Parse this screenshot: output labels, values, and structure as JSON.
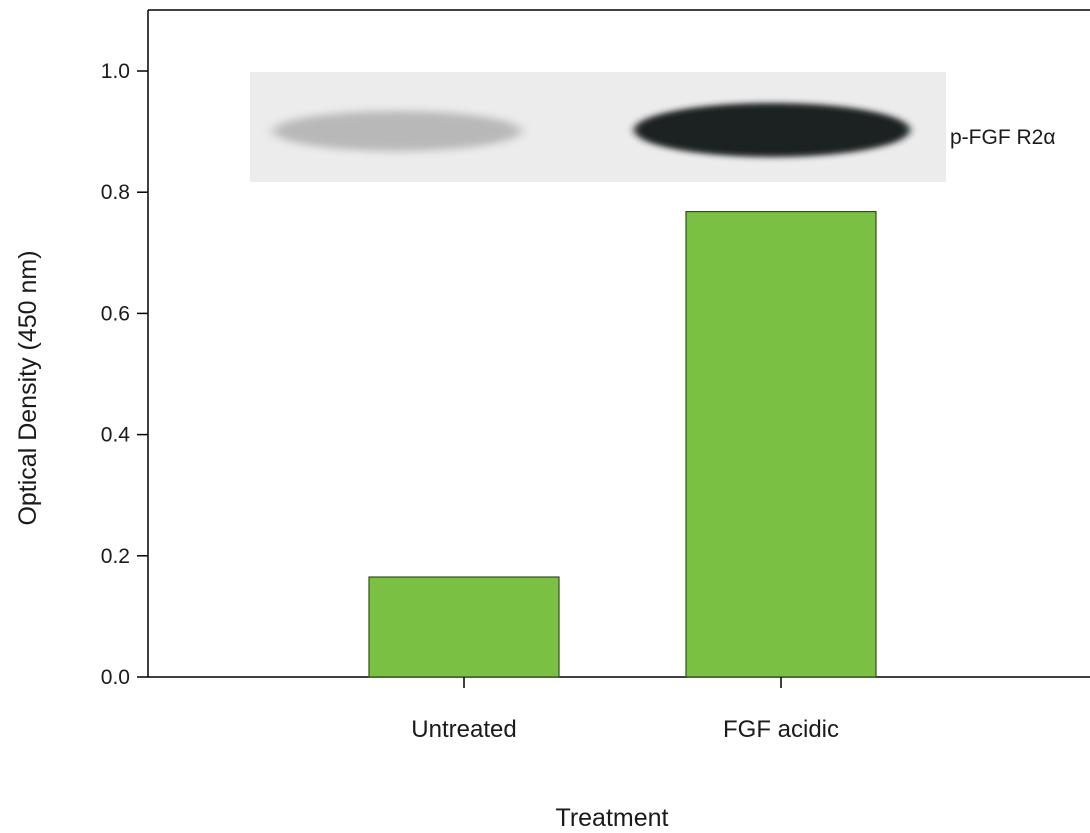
{
  "chart_data": {
    "type": "bar",
    "categories": [
      "Untreated",
      "FGF acidic"
    ],
    "values": [
      0.165,
      0.768
    ],
    "xlabel": "Treatment",
    "ylabel": "Optical Density (450 nm)",
    "ylim": [
      0,
      1.1
    ],
    "yticks": [
      "0.0",
      "0.2",
      "0.4",
      "0.6",
      "0.8",
      "1.0"
    ],
    "ytick_values": [
      0,
      0.2,
      0.4,
      0.6,
      0.8,
      1.0
    ],
    "grid": false,
    "bar_color": "#7ac143",
    "bar_edge_color": "#2f4f1c",
    "inset": {
      "type": "western-blot",
      "label": "p-FGF R2α",
      "bands": [
        {
          "lane": "Untreated",
          "intensity": 0.25
        },
        {
          "lane": "FGF acidic",
          "intensity": 0.95
        }
      ]
    }
  }
}
